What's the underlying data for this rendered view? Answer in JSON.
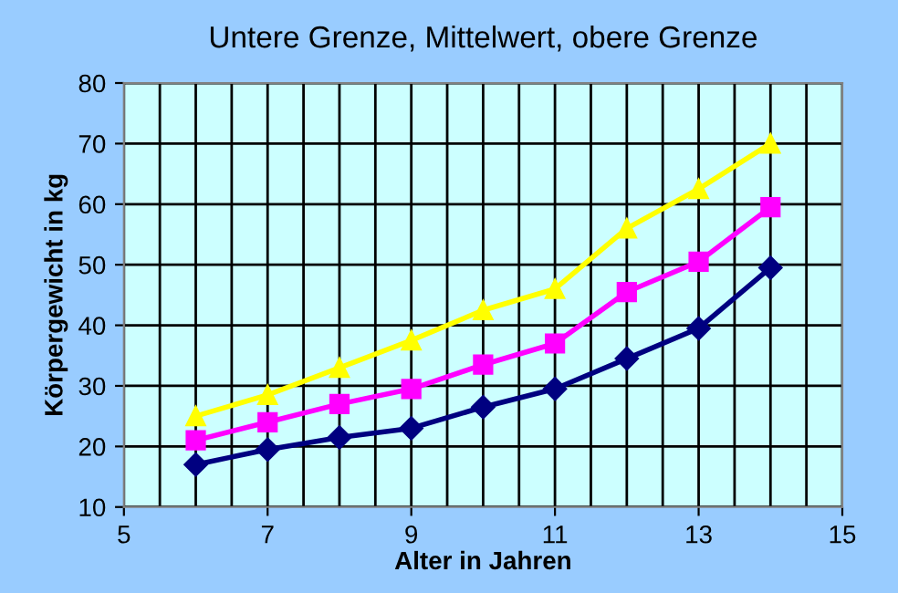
{
  "chart_data": {
    "type": "line",
    "title": "Untere Grenze, Mittelwert, obere Grenze",
    "xlabel": "Alter in Jahren",
    "ylabel": "Körpergewicht in kg",
    "x": [
      6,
      7,
      8,
      9,
      10,
      11,
      12,
      13,
      14
    ],
    "series": [
      {
        "color": "#000080",
        "marker": "diamond",
        "values": [
          17,
          19.5,
          21.5,
          23,
          26.5,
          29.5,
          34.5,
          39.5,
          49.5
        ]
      },
      {
        "color": "#ff00ff",
        "marker": "square",
        "values": [
          21,
          24,
          27,
          29.5,
          33.5,
          37,
          45.5,
          50.5,
          59.5
        ]
      },
      {
        "color": "#ffff00",
        "marker": "triangle",
        "values": [
          25,
          28.5,
          33,
          37.5,
          42.5,
          46,
          56,
          62.5,
          70
        ]
      }
    ],
    "xlim": [
      5,
      15
    ],
    "xticks": [
      5,
      {
        "value": 5.5,
        "label": null
      },
      {
        "value": 6,
        "label": null
      },
      {
        "value": 6.5,
        "label": null
      },
      7,
      {
        "value": 7.5,
        "label": null
      },
      {
        "value": 8,
        "label": null
      },
      {
        "value": 8.5,
        "label": null
      },
      9,
      {
        "value": 9.5,
        "label": null
      },
      {
        "value": 10,
        "label": null
      },
      {
        "value": 10.5,
        "label": null
      },
      11,
      {
        "value": 11.5,
        "label": null
      },
      {
        "value": 12,
        "label": null
      },
      {
        "value": 12.5,
        "label": null
      },
      13,
      {
        "value": 13.5,
        "label": null
      },
      {
        "value": 14,
        "label": null
      },
      {
        "value": 14.5,
        "label": null
      },
      15
    ],
    "ylim": [
      10,
      80
    ],
    "yticks": [
      10,
      20,
      30,
      40,
      50,
      60,
      70,
      80
    ],
    "grid": true,
    "legend": false,
    "line_style": "solid"
  }
}
